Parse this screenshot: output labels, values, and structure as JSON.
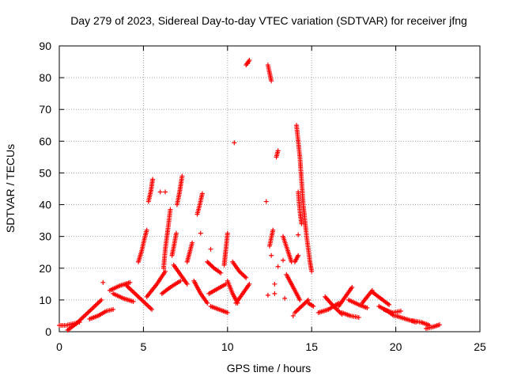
{
  "chart_data": {
    "type": "scatter",
    "title": "Day 279 of 2023, Sidereal Day-to-day VTEC variation (SDTVAR) for receiver jfng",
    "xlabel": "GPS time / hours",
    "ylabel": "SDTVAR / TECUs",
    "xlim": [
      0,
      25
    ],
    "ylim": [
      0,
      90
    ],
    "xticks": [
      "0",
      "5",
      "10",
      "15",
      "20",
      "25"
    ],
    "yticks": [
      "0",
      "10",
      "20",
      "30",
      "40",
      "50",
      "60",
      "70",
      "80",
      "90"
    ],
    "grid": true,
    "marker": "+",
    "color": "#ff0000",
    "tracks": [
      [
        [
          0.0,
          2.0
        ],
        [
          0.4,
          2.0
        ],
        [
          0.8,
          2.5
        ],
        [
          1.2,
          3.0
        ]
      ],
      [
        [
          0.5,
          0.5
        ],
        [
          1.0,
          2.5
        ],
        [
          1.5,
          5.0
        ],
        [
          2.0,
          7.5
        ],
        [
          2.5,
          10.0
        ]
      ],
      [
        [
          1.8,
          4.0
        ],
        [
          2.3,
          5.0
        ],
        [
          2.8,
          6.5
        ],
        [
          3.2,
          7.0
        ]
      ],
      [
        [
          3.0,
          13.0
        ],
        [
          3.6,
          14.5
        ],
        [
          4.2,
          15.5
        ]
      ],
      [
        [
          3.2,
          12.0
        ],
        [
          3.8,
          10.5
        ],
        [
          4.4,
          9.5
        ]
      ],
      [
        [
          4.0,
          14.5
        ],
        [
          4.5,
          12.0
        ],
        [
          5.0,
          9.5
        ],
        [
          5.5,
          7.0
        ]
      ],
      [
        [
          4.7,
          22.0
        ],
        [
          4.9,
          25.5
        ],
        [
          5.05,
          29.0
        ],
        [
          5.2,
          32.0
        ]
      ],
      [
        [
          5.3,
          41.0
        ],
        [
          5.45,
          44.5
        ],
        [
          5.55,
          48.0
        ]
      ],
      [
        [
          5.2,
          11.0
        ],
        [
          5.8,
          15.0
        ],
        [
          6.3,
          19.0
        ]
      ],
      [
        [
          6.2,
          20.0
        ],
        [
          6.3,
          26.0
        ],
        [
          6.45,
          32.0
        ],
        [
          6.6,
          38.5
        ]
      ],
      [
        [
          6.7,
          24.0
        ],
        [
          6.85,
          28.0
        ],
        [
          6.95,
          31.0
        ]
      ],
      [
        [
          6.1,
          12.0
        ],
        [
          6.6,
          14.0
        ],
        [
          7.2,
          16.0
        ]
      ],
      [
        [
          7.0,
          40.0
        ],
        [
          7.15,
          44.0
        ],
        [
          7.3,
          49.0
        ]
      ],
      [
        [
          6.8,
          21.0
        ],
        [
          7.2,
          18.0
        ],
        [
          7.6,
          15.0
        ]
      ],
      [
        [
          7.6,
          22.0
        ],
        [
          7.75,
          25.0
        ],
        [
          7.9,
          28.0
        ]
      ],
      [
        [
          8.2,
          37.0
        ],
        [
          8.35,
          40.0
        ],
        [
          8.5,
          43.5
        ]
      ],
      [
        [
          8.0,
          16.0
        ],
        [
          8.4,
          12.0
        ],
        [
          8.8,
          9.0
        ]
      ],
      [
        [
          8.9,
          12.0
        ],
        [
          9.4,
          13.5
        ],
        [
          9.9,
          15.0
        ]
      ],
      [
        [
          8.8,
          22.0
        ],
        [
          9.2,
          20.0
        ],
        [
          9.6,
          18.5
        ]
      ],
      [
        [
          9.0,
          8.0
        ],
        [
          9.5,
          7.0
        ],
        [
          10.0,
          6.0
        ]
      ],
      [
        [
          9.8,
          21.0
        ],
        [
          9.9,
          26.0
        ],
        [
          10.0,
          31.0
        ]
      ],
      [
        [
          10.0,
          16.0
        ],
        [
          10.3,
          12.0
        ],
        [
          10.6,
          9.0
        ]
      ],
      [
        [
          10.3,
          22.0
        ],
        [
          10.7,
          19.0
        ],
        [
          11.1,
          17.0
        ]
      ],
      [
        [
          10.5,
          9.0
        ],
        [
          10.9,
          12.0
        ],
        [
          11.3,
          15.0
        ]
      ],
      [
        [
          11.1,
          84.0
        ],
        [
          11.3,
          85.5
        ]
      ],
      [
        [
          12.4,
          84.0
        ],
        [
          12.5,
          81.5
        ],
        [
          12.6,
          79.0
        ]
      ],
      [
        [
          12.5,
          27.0
        ],
        [
          12.6,
          29.5
        ],
        [
          12.7,
          32.0
        ]
      ],
      [
        [
          12.9,
          55.0
        ],
        [
          13.0,
          57.0
        ]
      ],
      [
        [
          13.3,
          30.0
        ],
        [
          13.55,
          26.0
        ],
        [
          13.8,
          22.0
        ]
      ],
      [
        [
          13.5,
          18.0
        ],
        [
          13.9,
          14.0
        ],
        [
          14.3,
          10.0
        ]
      ],
      [
        [
          14.1,
          65.0
        ],
        [
          14.3,
          55.0
        ],
        [
          14.5,
          40.0
        ],
        [
          14.7,
          30.0
        ],
        [
          14.9,
          22.0
        ],
        [
          15.0,
          19.0
        ]
      ],
      [
        [
          14.2,
          44.0
        ],
        [
          14.3,
          38.0
        ],
        [
          14.4,
          34.0
        ]
      ],
      [
        [
          14.0,
          22.0
        ],
        [
          14.2,
          24.0
        ]
      ],
      [
        [
          14.0,
          6.0
        ],
        [
          14.4,
          8.0
        ],
        [
          14.8,
          10.0
        ]
      ],
      [
        [
          14.8,
          9.0
        ],
        [
          15.1,
          8.0
        ]
      ],
      [
        [
          15.4,
          6.0
        ],
        [
          16.0,
          7.0
        ],
        [
          16.6,
          9.0
        ]
      ],
      [
        [
          15.8,
          11.0
        ],
        [
          16.3,
          8.0
        ],
        [
          16.8,
          5.5
        ]
      ],
      [
        [
          16.6,
          8.0
        ],
        [
          17.0,
          11.0
        ],
        [
          17.4,
          14.0
        ]
      ],
      [
        [
          16.8,
          6.0
        ],
        [
          17.3,
          5.0
        ],
        [
          17.8,
          4.5
        ]
      ],
      [
        [
          17.2,
          10.0
        ],
        [
          17.8,
          8.5
        ],
        [
          18.3,
          7.5
        ]
      ],
      [
        [
          18.0,
          9.0
        ],
        [
          18.3,
          11.0
        ],
        [
          18.6,
          13.0
        ]
      ],
      [
        [
          18.6,
          12.5
        ],
        [
          19.1,
          10.5
        ],
        [
          19.6,
          8.5
        ]
      ],
      [
        [
          19.0,
          8.0
        ],
        [
          19.5,
          6.5
        ],
        [
          19.9,
          5.0
        ]
      ],
      [
        [
          19.3,
          7.0
        ],
        [
          19.8,
          6.0
        ],
        [
          20.3,
          6.5
        ]
      ],
      [
        [
          20.0,
          5.0
        ],
        [
          20.6,
          4.0
        ],
        [
          21.2,
          3.0
        ]
      ],
      [
        [
          21.0,
          3.5
        ],
        [
          21.5,
          3.0
        ],
        [
          22.0,
          2.0
        ]
      ],
      [
        [
          21.8,
          1.0
        ],
        [
          22.2,
          1.5
        ],
        [
          22.6,
          2.2
        ]
      ]
    ],
    "points": [
      [
        2.6,
        15.5
      ],
      [
        6.0,
        44.0
      ],
      [
        9.0,
        26.0
      ],
      [
        10.4,
        59.5
      ],
      [
        11.2,
        84.5
      ],
      [
        12.3,
        41.0
      ],
      [
        12.4,
        11.5
      ],
      [
        12.8,
        15.0
      ],
      [
        12.8,
        12.0
      ],
      [
        13.3,
        22.5
      ],
      [
        13.4,
        10.5
      ],
      [
        13.0,
        20.5
      ],
      [
        14.2,
        30.5
      ],
      [
        8.4,
        31.0
      ],
      [
        6.3,
        44.0
      ],
      [
        12.6,
        24.0
      ],
      [
        13.9,
        5.0
      ]
    ]
  }
}
